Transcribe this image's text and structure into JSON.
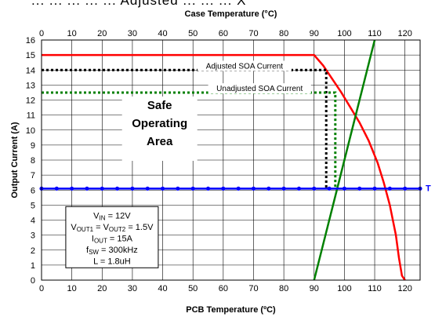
{
  "page": {
    "header_fragment": "... ... ... ... ... Adjusted ... ... ... X"
  },
  "chart_data": {
    "type": "line",
    "title": "",
    "xlabel": "PCB Temperature (ºC)",
    "x2label": "Case Temperature (°C)",
    "ylabel": "Output Current (A)",
    "xlim": [
      0,
      125
    ],
    "x2lim": [
      0,
      125
    ],
    "ylim": [
      0,
      16
    ],
    "x_ticks": [
      0,
      10,
      20,
      30,
      40,
      50,
      60,
      70,
      80,
      90,
      100,
      110,
      120
    ],
    "x2_ticks": [
      0,
      10,
      20,
      30,
      40,
      50,
      60,
      70,
      80,
      90,
      100,
      110,
      120
    ],
    "y_ticks": [
      0,
      1,
      2,
      3,
      4,
      5,
      6,
      7,
      8,
      9,
      10,
      11,
      12,
      13,
      14,
      15,
      16
    ],
    "grid": true,
    "series": [
      {
        "color": "#ff0000",
        "style": "solid",
        "x": [
          0,
          90,
          93,
          96,
          99,
          102,
          105,
          108,
          111,
          113,
          115,
          117,
          118,
          119,
          120
        ],
        "y": [
          15,
          15,
          14.3,
          13.4,
          12.5,
          11.5,
          10.5,
          9.3,
          7.8,
          6.5,
          5,
          3,
          1.5,
          0.3,
          0
        ]
      },
      {
        "color": "#008000",
        "style": "solid",
        "x": [
          90,
          110
        ],
        "y": [
          0,
          16
        ]
      },
      {
        "color": "#0000ff",
        "style": "solid-markers",
        "x": [
          0,
          5,
          10,
          15,
          20,
          25,
          30,
          35,
          40,
          45,
          50,
          55,
          60,
          65,
          70,
          75,
          80,
          85,
          90,
          95,
          100,
          105,
          110,
          115,
          120,
          125
        ],
        "y": [
          6.1,
          6.1,
          6.1,
          6.1,
          6.1,
          6.1,
          6.1,
          6.1,
          6.1,
          6.1,
          6.1,
          6.1,
          6.1,
          6.1,
          6.1,
          6.1,
          6.1,
          6.1,
          6.1,
          6.1,
          6.1,
          6.1,
          6.1,
          6.1,
          6.1,
          6.1
        ]
      },
      {
        "color": "#000000",
        "style": "dotted",
        "x": [
          0,
          94,
          94
        ],
        "y": [
          14,
          14,
          6.1
        ]
      },
      {
        "color": "#008000",
        "style": "dotted",
        "x": [
          0,
          97,
          97
        ],
        "y": [
          12.5,
          12.5,
          6.1
        ]
      }
    ],
    "annotations": {
      "adjusted_label": "Adjusted SOA Current",
      "unadjusted_label": "Unadjusted SOA Current",
      "region_label": [
        "Safe",
        "Operating",
        "Area"
      ],
      "edge_label": "T"
    },
    "conditions": [
      {
        "parts": [
          [
            "V",
            ""
          ],
          [
            "IN",
            "sub"
          ],
          [
            " = 12V",
            ""
          ]
        ]
      },
      {
        "parts": [
          [
            "V",
            ""
          ],
          [
            "OUT1",
            "sub"
          ],
          [
            " = V",
            ""
          ],
          [
            "OUT2",
            "sub"
          ],
          [
            " = 1.5V",
            ""
          ]
        ]
      },
      {
        "parts": [
          [
            "I",
            ""
          ],
          [
            "OUT",
            "sub"
          ],
          [
            " = 15A",
            ""
          ]
        ]
      },
      {
        "parts": [
          [
            "f",
            ""
          ],
          [
            "SW",
            "sub"
          ],
          [
            " = 300kHz",
            ""
          ]
        ]
      },
      {
        "parts": [
          [
            "L = 1.8uH",
            ""
          ]
        ]
      }
    ]
  }
}
